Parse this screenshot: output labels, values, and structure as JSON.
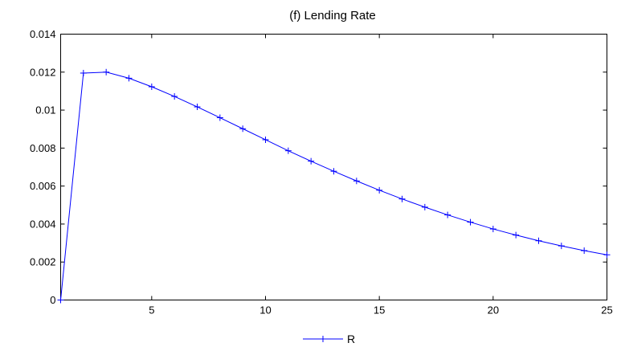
{
  "chart_data": {
    "type": "line",
    "title": "(f) Lending Rate",
    "xlabel": "",
    "ylabel": "",
    "xlim": [
      1,
      25
    ],
    "ylim": [
      0,
      0.014
    ],
    "x_ticks": [
      5,
      10,
      15,
      20,
      25
    ],
    "y_ticks": [
      0,
      0.002,
      0.004,
      0.006,
      0.008,
      0.01,
      0.012,
      0.014
    ],
    "x_tick_labels": [
      "5",
      "10",
      "15",
      "20",
      "25"
    ],
    "y_tick_labels": [
      "0",
      "0.002",
      "0.004",
      "0.006",
      "0.008",
      "0.01",
      "0.012",
      "0.014"
    ],
    "grid": false,
    "legend_position": "bottom-center",
    "series": [
      {
        "name": "R",
        "color": "#0000ff",
        "marker": "plus",
        "x": [
          1,
          2,
          3,
          4,
          5,
          6,
          7,
          8,
          9,
          10,
          11,
          12,
          13,
          14,
          15,
          16,
          17,
          18,
          19,
          20,
          21,
          22,
          23,
          24,
          25
        ],
        "values": [
          0,
          0.01195,
          0.012,
          0.01168,
          0.01123,
          0.01072,
          0.01017,
          0.0096,
          0.00902,
          0.00844,
          0.00786,
          0.00731,
          0.00678,
          0.00627,
          0.00578,
          0.00532,
          0.00489,
          0.00448,
          0.0041,
          0.00374,
          0.00342,
          0.00312,
          0.00285,
          0.0026,
          0.00238
        ]
      }
    ]
  }
}
